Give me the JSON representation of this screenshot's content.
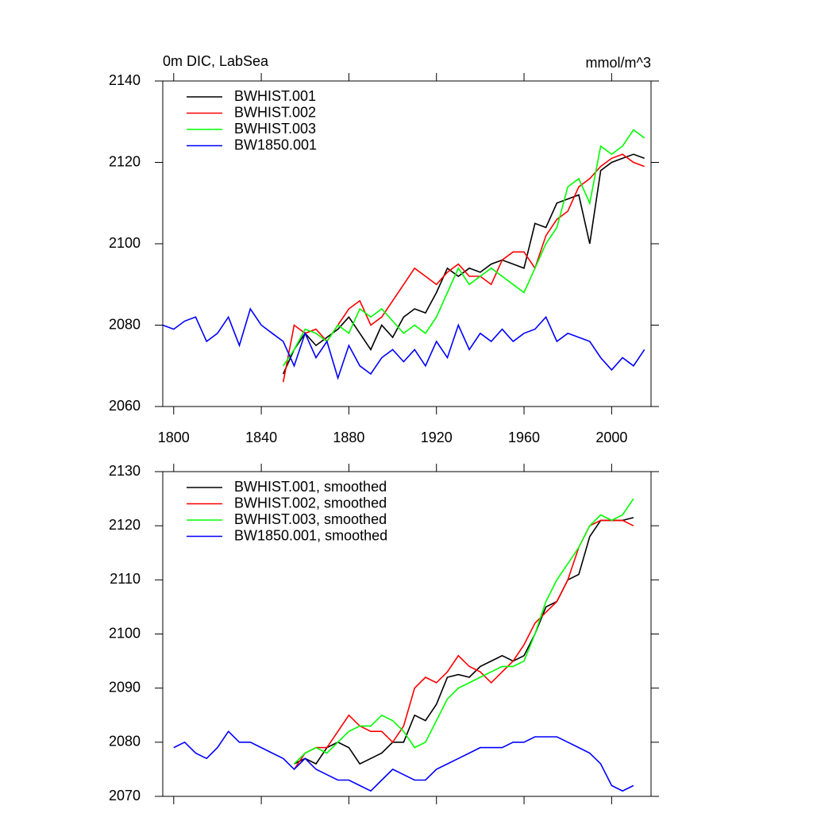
{
  "chart_data": [
    {
      "type": "line",
      "title": "0m DIC, LabSea",
      "subtitle": "mmol/m^3",
      "x": [
        1795,
        1800,
        1805,
        1810,
        1815,
        1820,
        1825,
        1830,
        1835,
        1840,
        1845,
        1850,
        1855,
        1860,
        1865,
        1870,
        1875,
        1880,
        1885,
        1890,
        1895,
        1900,
        1905,
        1910,
        1915,
        1920,
        1925,
        1930,
        1935,
        1940,
        1945,
        1950,
        1955,
        1960,
        1965,
        1970,
        1975,
        1980,
        1985,
        1990,
        1995,
        2000,
        2005,
        2010,
        2015
      ],
      "xlim": [
        1795,
        2018
      ],
      "xticks": [
        1800,
        1840,
        1880,
        1920,
        1960,
        2000
      ],
      "ylim": [
        2060,
        2140
      ],
      "yticks": [
        2060,
        2080,
        2100,
        2120,
        2140
      ],
      "legend": "upper left",
      "series": [
        {
          "name": "BWHIST.001",
          "color": "#000000",
          "values": [
            null,
            null,
            null,
            null,
            null,
            null,
            null,
            null,
            null,
            null,
            null,
            2068,
            2074,
            2078,
            2075,
            2077,
            2079,
            2082,
            2078,
            2074,
            2080,
            2077,
            2082,
            2084,
            2083,
            2088,
            2094,
            2092,
            2094,
            2093,
            2095,
            2096,
            2095,
            2094,
            2105,
            2104,
            2110,
            2111,
            2112,
            2100,
            2118,
            2120,
            2121,
            2122,
            2121
          ]
        },
        {
          "name": "BWHIST.002",
          "color": "#ff0000",
          "values": [
            null,
            null,
            null,
            null,
            null,
            null,
            null,
            null,
            null,
            null,
            null,
            2066,
            2080,
            2078,
            2079,
            2076,
            2080,
            2084,
            2086,
            2080,
            2082,
            2086,
            2090,
            2094,
            2092,
            2090,
            2093,
            2095,
            2092,
            2092,
            2090,
            2096,
            2098,
            2098,
            2094,
            2102,
            2106,
            2108,
            2114,
            2116,
            2119,
            2121,
            2122,
            2120,
            2119
          ]
        },
        {
          "name": "BWHIST.003",
          "color": "#00ff00",
          "values": [
            null,
            null,
            null,
            null,
            null,
            null,
            null,
            null,
            null,
            null,
            null,
            2070,
            2074,
            2079,
            2078,
            2076,
            2080,
            2078,
            2084,
            2082,
            2084,
            2081,
            2078,
            2080,
            2078,
            2082,
            2088,
            2094,
            2090,
            2092,
            2094,
            2092,
            2090,
            2088,
            2094,
            2100,
            2104,
            2114,
            2116,
            2110,
            2124,
            2122,
            2124,
            2128,
            2126
          ]
        },
        {
          "name": "BW1850.001",
          "color": "#0000ff",
          "values": [
            2080,
            2079,
            2081,
            2082,
            2076,
            2078,
            2082,
            2075,
            2084,
            2080,
            2078,
            2076,
            2070,
            2078,
            2072,
            2076,
            2067,
            2075,
            2070,
            2068,
            2072,
            2074,
            2071,
            2074,
            2070,
            2076,
            2072,
            2080,
            2074,
            2078,
            2076,
            2079,
            2076,
            2078,
            2079,
            2082,
            2076,
            2078,
            2077,
            2076,
            2072,
            2069,
            2072,
            2070,
            2074
          ]
        }
      ]
    },
    {
      "type": "line",
      "x": [
        1795,
        1800,
        1805,
        1810,
        1815,
        1820,
        1825,
        1830,
        1835,
        1840,
        1845,
        1850,
        1855,
        1860,
        1865,
        1870,
        1875,
        1880,
        1885,
        1890,
        1895,
        1900,
        1905,
        1910,
        1915,
        1920,
        1925,
        1930,
        1935,
        1940,
        1945,
        1950,
        1955,
        1960,
        1965,
        1970,
        1975,
        1980,
        1985,
        1990,
        1995,
        2000,
        2005,
        2010,
        2015
      ],
      "xlim": [
        1795,
        2018
      ],
      "xticks": [
        1800,
        1840,
        1880,
        1920,
        1960,
        2000
      ],
      "ylim": [
        2070,
        2130
      ],
      "yticks": [
        2070,
        2080,
        2090,
        2100,
        2110,
        2120,
        2130
      ],
      "legend": "upper left",
      "series": [
        {
          "name": "BWHIST.001, smoothed",
          "color": "#000000",
          "values": [
            null,
            null,
            null,
            null,
            null,
            null,
            null,
            null,
            null,
            null,
            null,
            null,
            2076,
            2077,
            2076,
            2079,
            2080,
            2079,
            2076,
            2077,
            2078,
            2080,
            2080,
            2085,
            2084,
            2087,
            2092,
            2092.5,
            2092,
            2094,
            2095,
            2096,
            2095,
            2096,
            2100,
            2105,
            2106,
            2110,
            2111,
            2118,
            2121,
            2121,
            2121,
            2121.5,
            null
          ]
        },
        {
          "name": "BWHIST.002, smoothed",
          "color": "#ff0000",
          "values": [
            null,
            null,
            null,
            null,
            null,
            null,
            null,
            null,
            null,
            null,
            null,
            null,
            2075,
            2078,
            2079,
            2079,
            2082,
            2085,
            2083,
            2082,
            2082,
            2080,
            2083,
            2090,
            2092,
            2091,
            2093,
            2096,
            2094,
            2093,
            2091,
            2093,
            2095,
            2098,
            2102,
            2104,
            2106,
            2110,
            2116,
            2120,
            2121,
            2121,
            2121,
            2120,
            null
          ]
        },
        {
          "name": "BWHIST.003, smoothed",
          "color": "#00ff00",
          "values": [
            null,
            null,
            null,
            null,
            null,
            null,
            null,
            null,
            null,
            null,
            null,
            null,
            2076,
            2078,
            2079,
            2078,
            2080,
            2082,
            2083,
            2083,
            2085,
            2084,
            2082,
            2079,
            2080,
            2084,
            2088,
            2090,
            2091,
            2092,
            2093,
            2094,
            2094,
            2095,
            2100,
            2106,
            2110,
            2113,
            2116,
            2120,
            2122,
            2121,
            2122,
            2125,
            null
          ]
        },
        {
          "name": "BW1850.001, smoothed",
          "color": "#0000ff",
          "values": [
            null,
            2079,
            2080,
            2078,
            2077,
            2079,
            2082,
            2080,
            2080,
            2079,
            2078,
            2077,
            2075,
            2077,
            2075,
            2074,
            2073,
            2073,
            2072,
            2071,
            2073,
            2075,
            2074,
            2073,
            2073,
            2075,
            2076,
            2077,
            2078,
            2079,
            2079,
            2079,
            2080,
            2080,
            2081,
            2081,
            2081,
            2080,
            2079,
            2078,
            2076,
            2072,
            2071,
            2072,
            null
          ]
        }
      ]
    }
  ]
}
